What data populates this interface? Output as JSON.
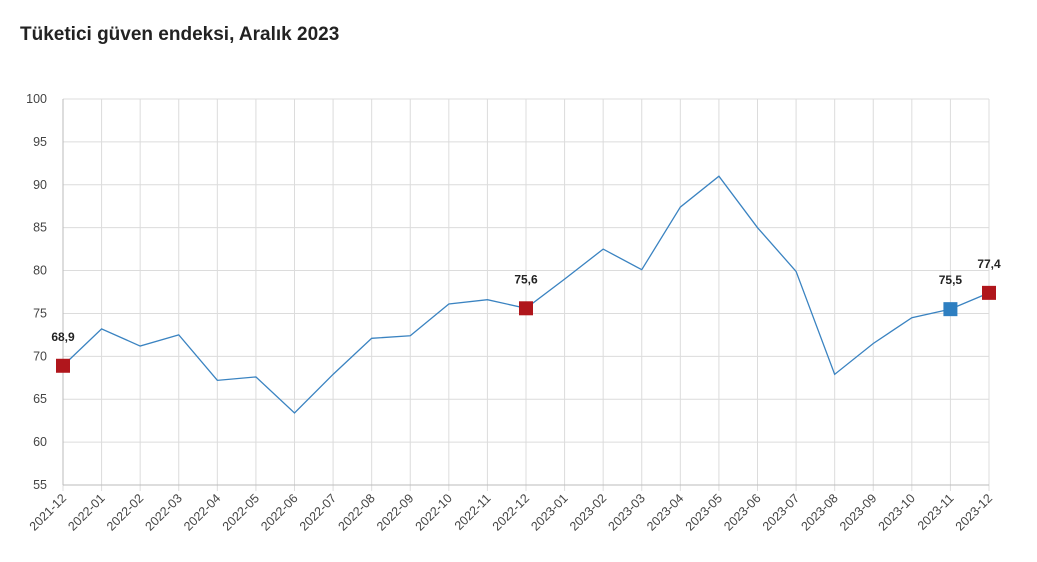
{
  "chart_data": {
    "type": "line",
    "title": "Tüketici güven endeksi, Aralık 2023",
    "xlabel": "",
    "ylabel": "",
    "ylim": [
      55,
      100
    ],
    "yticks": [
      55,
      60,
      65,
      70,
      75,
      80,
      85,
      90,
      95,
      100
    ],
    "grid": true,
    "categories": [
      "2021-12",
      "2022-01",
      "2022-02",
      "2022-03",
      "2022-04",
      "2022-05",
      "2022-06",
      "2022-07",
      "2022-08",
      "2022-09",
      "2022-10",
      "2022-11",
      "2022-12",
      "2023-01",
      "2023-02",
      "2023-03",
      "2023-04",
      "2023-05",
      "2023-06",
      "2023-07",
      "2023-08",
      "2023-09",
      "2023-10",
      "2023-11",
      "2023-12"
    ],
    "series": [
      {
        "values": [
          68.9,
          73.2,
          71.2,
          72.5,
          67.2,
          67.6,
          63.4,
          67.9,
          72.1,
          72.4,
          76.1,
          76.6,
          75.6,
          79.0,
          82.5,
          80.1,
          87.4,
          91.0,
          85.0,
          79.9,
          67.9,
          71.5,
          74.5,
          75.5,
          77.4
        ],
        "color": "#3a83c1"
      }
    ],
    "highlights": [
      {
        "index": 0,
        "label": "68,9",
        "color": "#b0161c"
      },
      {
        "index": 12,
        "label": "75,6",
        "color": "#b0161c"
      },
      {
        "index": 23,
        "label": "75,5",
        "color": "#2e7fc1"
      },
      {
        "index": 24,
        "label": "77,4",
        "color": "#b0161c"
      }
    ]
  }
}
